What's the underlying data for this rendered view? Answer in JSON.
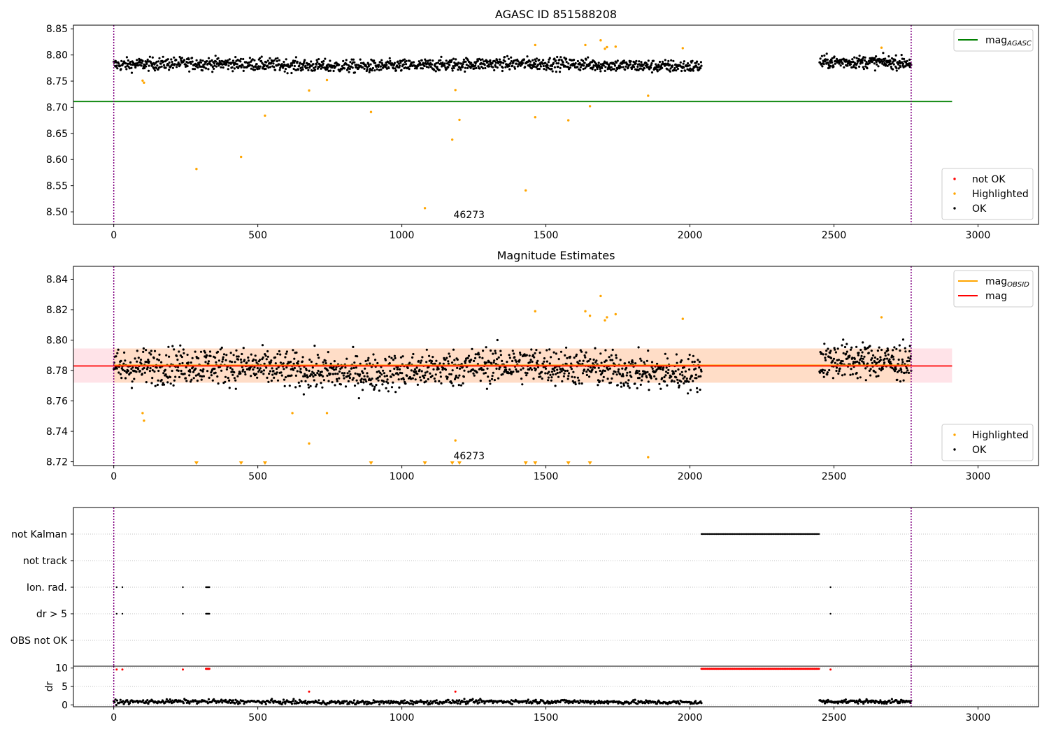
{
  "figure": {
    "background": "#ffffff"
  },
  "colors": {
    "ok": "#000000",
    "highlighted": "#ffa500",
    "not_ok": "#ff0000",
    "agasc_line": "#008000",
    "mag_line": "#ff0000",
    "obsid_line": "#ffa500",
    "band_fill": "#ffc0cb",
    "band_fill_inner": "#ffdab9",
    "obsid_boundary": "#800080",
    "grid": "#b0b0b0"
  },
  "chart_data": [
    {
      "id": "top",
      "type": "scatter",
      "title": "AGASC ID 851588208",
      "xlabel": "",
      "ylabel": "",
      "xlim": [
        -140,
        3210
      ],
      "ylim": [
        8.476,
        8.857
      ],
      "xticks": [
        0,
        500,
        1000,
        1500,
        2000,
        2500,
        3000
      ],
      "yticks": [
        8.5,
        8.55,
        8.6,
        8.65,
        8.7,
        8.75,
        8.8,
        8.85
      ],
      "ytick_labels": [
        "8.50",
        "8.55",
        "8.60",
        "8.65",
        "8.70",
        "8.75",
        "8.80",
        "8.85"
      ],
      "obsid_boundaries": [
        0,
        2768
      ],
      "obsid_label": "46273",
      "hlines": [
        {
          "name": "mag_AGASC",
          "y": 8.711,
          "x_range": [
            -140,
            2910
          ],
          "color": "#008000"
        }
      ],
      "ok_segments": [
        {
          "x_range": [
            0,
            2040
          ],
          "base": 8.781,
          "jitter": 0.011,
          "count": 1300
        },
        {
          "x_range": [
            2450,
            2768
          ],
          "base": 8.784,
          "jitter": 0.011,
          "count": 230
        }
      ],
      "highlighted_points": [
        [
          100,
          8.751
        ],
        [
          105,
          8.747
        ],
        [
          287,
          8.582
        ],
        [
          442,
          8.605
        ],
        [
          525,
          8.684
        ],
        [
          678,
          8.732
        ],
        [
          740,
          8.752
        ],
        [
          893,
          8.691
        ],
        [
          1080,
          8.507
        ],
        [
          1175,
          8.638
        ],
        [
          1186,
          8.733
        ],
        [
          1200,
          8.676
        ],
        [
          1430,
          8.541
        ],
        [
          1463,
          8.681
        ],
        [
          1463,
          8.819
        ],
        [
          1578,
          8.675
        ],
        [
          1637,
          8.819
        ],
        [
          1653,
          8.702
        ],
        [
          1690,
          8.828
        ],
        [
          1705,
          8.812
        ],
        [
          1712,
          8.815
        ],
        [
          1742,
          8.816
        ],
        [
          1855,
          8.722
        ],
        [
          1975,
          8.813
        ],
        [
          2665,
          8.814
        ]
      ],
      "legends": [
        {
          "position": "top-right",
          "entries": [
            {
              "kind": "line",
              "color": "#008000",
              "label": "mag",
              "sub": "AGASC"
            }
          ]
        },
        {
          "position": "bottom-right",
          "entries": [
            {
              "kind": "dot",
              "color": "#ff0000",
              "label": "not OK"
            },
            {
              "kind": "dot",
              "color": "#ffa500",
              "label": "Highlighted"
            },
            {
              "kind": "dot",
              "color": "#000000",
              "label": "OK"
            }
          ]
        }
      ]
    },
    {
      "id": "middle",
      "type": "scatter",
      "title": "Magnitude Estimates",
      "xlabel": "",
      "ylabel": "",
      "xlim": [
        -140,
        3210
      ],
      "ylim": [
        8.7175,
        8.8485
      ],
      "xticks": [
        0,
        500,
        1000,
        1500,
        2000,
        2500,
        3000
      ],
      "yticks": [
        8.72,
        8.74,
        8.76,
        8.78,
        8.8,
        8.82,
        8.84
      ],
      "ytick_labels": [
        "8.72",
        "8.74",
        "8.76",
        "8.78",
        "8.80",
        "8.82",
        "8.84"
      ],
      "obsid_boundaries": [
        0,
        2768
      ],
      "obsid_label": "46273",
      "band": {
        "y_range": [
          8.772,
          8.7945
        ],
        "x_range": [
          -140,
          2910
        ]
      },
      "band_inner": {
        "y_range": [
          8.772,
          8.7945
        ],
        "x_range": [
          0,
          2768
        ]
      },
      "hlines": [
        {
          "name": "mag",
          "y": 8.783,
          "x_range": [
            -140,
            2910
          ],
          "color": "#ff0000"
        },
        {
          "name": "mag_OBSID",
          "y": 8.7835,
          "x_range": [
            0,
            2768
          ],
          "color": "#ffa500"
        }
      ],
      "ok_segments": [
        {
          "x_range": [
            0,
            2040
          ],
          "base": 8.781,
          "jitter": 0.011,
          "count": 1300
        },
        {
          "x_range": [
            2450,
            2768
          ],
          "base": 8.784,
          "jitter": 0.011,
          "count": 230
        }
      ],
      "highlighted_points": [
        [
          100,
          8.752
        ],
        [
          105,
          8.747
        ],
        [
          620,
          8.752
        ],
        [
          678,
          8.732
        ],
        [
          740,
          8.752
        ],
        [
          1186,
          8.734
        ],
        [
          1463,
          8.819
        ],
        [
          1637,
          8.819
        ],
        [
          1653,
          8.816
        ],
        [
          1690,
          8.829
        ],
        [
          1705,
          8.813
        ],
        [
          1712,
          8.815
        ],
        [
          1742,
          8.817
        ],
        [
          1855,
          8.723
        ],
        [
          1975,
          8.814
        ],
        [
          2665,
          8.815
        ]
      ],
      "out_of_range_markers": [
        287,
        442,
        525,
        893,
        1080,
        1175,
        1200,
        1430,
        1463,
        1578,
        1653
      ],
      "legends": [
        {
          "position": "top-right",
          "entries": [
            {
              "kind": "line",
              "color": "#ffa500",
              "label": "mag",
              "sub": "OBSID"
            },
            {
              "kind": "line",
              "color": "#ff0000",
              "label": "mag"
            }
          ]
        },
        {
          "position": "bottom-right",
          "entries": [
            {
              "kind": "dot",
              "color": "#ffa500",
              "label": "Highlighted"
            },
            {
              "kind": "dot",
              "color": "#000000",
              "label": "OK"
            }
          ]
        }
      ]
    },
    {
      "id": "flags",
      "type": "scatter",
      "title": "",
      "xlim": [
        -140,
        3210
      ],
      "categories": [
        "not Kalman",
        "not track",
        "Ion. rad.",
        "dr > 5",
        "OBS not OK"
      ],
      "obsid_boundaries": [
        0,
        2768
      ],
      "flag_ranges": [
        {
          "category": "not Kalman",
          "x_range": [
            2040,
            2450
          ]
        }
      ],
      "flag_points": [
        {
          "category": "Ion. rad.",
          "x": [
            10,
            30,
            240,
            320,
            322,
            324,
            326,
            328,
            330,
            332,
            2488
          ]
        },
        {
          "category": "dr > 5",
          "x": [
            10,
            30,
            240,
            320,
            322,
            324,
            326,
            328,
            330,
            332,
            2488
          ]
        }
      ]
    },
    {
      "id": "dr",
      "type": "scatter",
      "title": "",
      "xlabel": "",
      "ylabel": "dr",
      "xlim": [
        -140,
        3210
      ],
      "ylim": [
        -0.5,
        10.5
      ],
      "xticks": [
        0,
        500,
        1000,
        1500,
        2000,
        2500,
        3000
      ],
      "yticks": [
        0,
        5,
        10
      ],
      "ytick_labels": [
        "0",
        "5",
        "10"
      ],
      "obsid_boundaries": [
        0,
        2768
      ],
      "ok_segments": [
        {
          "x_range": [
            0,
            2040
          ],
          "base": 0.8,
          "jitter": 0.5,
          "count": 700
        },
        {
          "x_range": [
            2450,
            2768
          ],
          "base": 0.8,
          "jitter": 0.5,
          "count": 120
        }
      ],
      "not_ok_points": [
        [
          10,
          9.6
        ],
        [
          30,
          9.6
        ],
        [
          240,
          9.6
        ],
        [
          320,
          9.8
        ],
        [
          322,
          9.8
        ],
        [
          324,
          9.8
        ],
        [
          326,
          9.8
        ],
        [
          328,
          9.8
        ],
        [
          330,
          9.8
        ],
        [
          332,
          9.8
        ],
        [
          678,
          3.6
        ],
        [
          1186,
          3.6
        ],
        [
          2488,
          9.6
        ]
      ],
      "not_ok_range": {
        "x_range": [
          2040,
          2450
        ],
        "y": 9.8
      }
    }
  ]
}
